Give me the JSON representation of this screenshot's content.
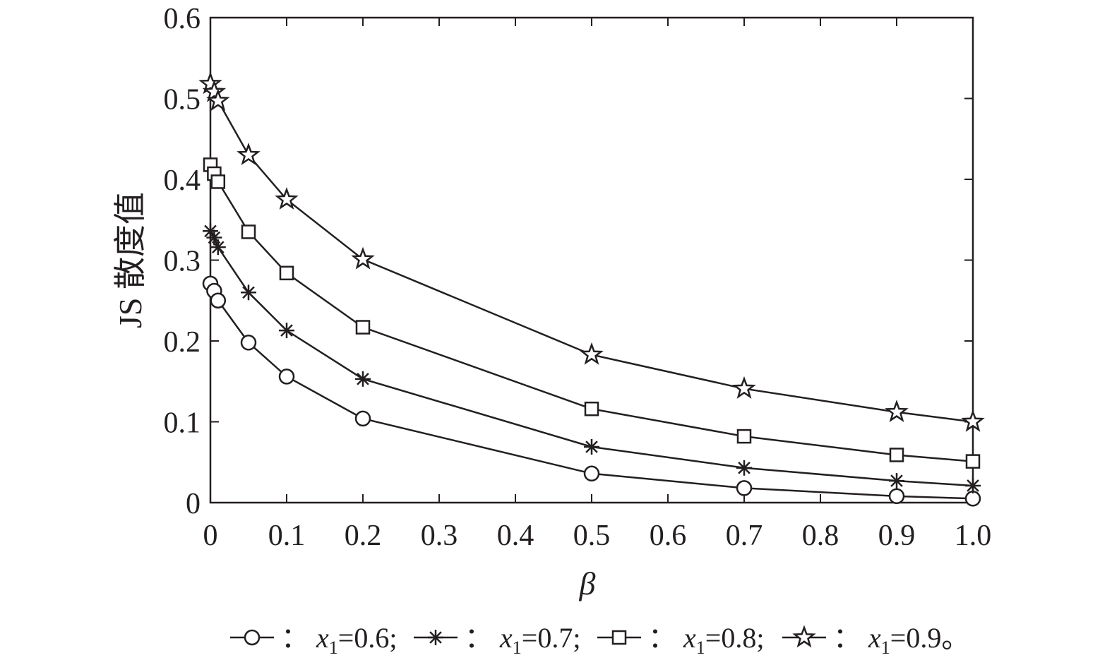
{
  "chart_data": {
    "type": "line",
    "xlabel": "β",
    "ylabel": "JS 散度值",
    "xlim": [
      0,
      1.0
    ],
    "ylim": [
      0,
      0.6
    ],
    "xticks": [
      "0",
      "0.1",
      "0.2",
      "0.3",
      "0.4",
      "0.5",
      "0.6",
      "0.7",
      "0.8",
      "0.9",
      "1.0"
    ],
    "yticks": [
      "0",
      "0.1",
      "0.2",
      "0.3",
      "0.4",
      "0.5",
      "0.6"
    ],
    "x": [
      0,
      0.005,
      0.01,
      0.05,
      0.1,
      0.2,
      0.5,
      0.7,
      0.9,
      1.0
    ],
    "series": [
      {
        "name": "x1=0.6",
        "marker": "circle",
        "values": [
          0.271,
          0.262,
          0.25,
          0.198,
          0.156,
          0.104,
          0.036,
          0.018,
          0.008,
          0.005
        ]
      },
      {
        "name": "x1=0.7",
        "marker": "asterisk",
        "values": [
          0.336,
          0.328,
          0.316,
          0.26,
          0.213,
          0.153,
          0.069,
          0.043,
          0.027,
          0.021
        ]
      },
      {
        "name": "x1=0.8",
        "marker": "square",
        "values": [
          0.418,
          0.407,
          0.397,
          0.335,
          0.284,
          0.217,
          0.116,
          0.082,
          0.059,
          0.051
        ]
      },
      {
        "name": "x1=0.9",
        "marker": "star",
        "values": [
          0.518,
          0.508,
          0.497,
          0.43,
          0.375,
          0.301,
          0.183,
          0.141,
          0.112,
          0.1
        ]
      }
    ],
    "grid": false,
    "legend_position": "bottom",
    "legend": {
      "separator": "：",
      "var": "x",
      "sub": "1",
      "entries": [
        {
          "marker": "circle",
          "value": "=0.6;"
        },
        {
          "marker": "asterisk",
          "value": "=0.7;"
        },
        {
          "marker": "square",
          "value": "=0.8;"
        },
        {
          "marker": "star",
          "value": "=0.9。"
        }
      ]
    },
    "colors": {
      "line": "#231f20",
      "background": "#ffffff"
    }
  }
}
